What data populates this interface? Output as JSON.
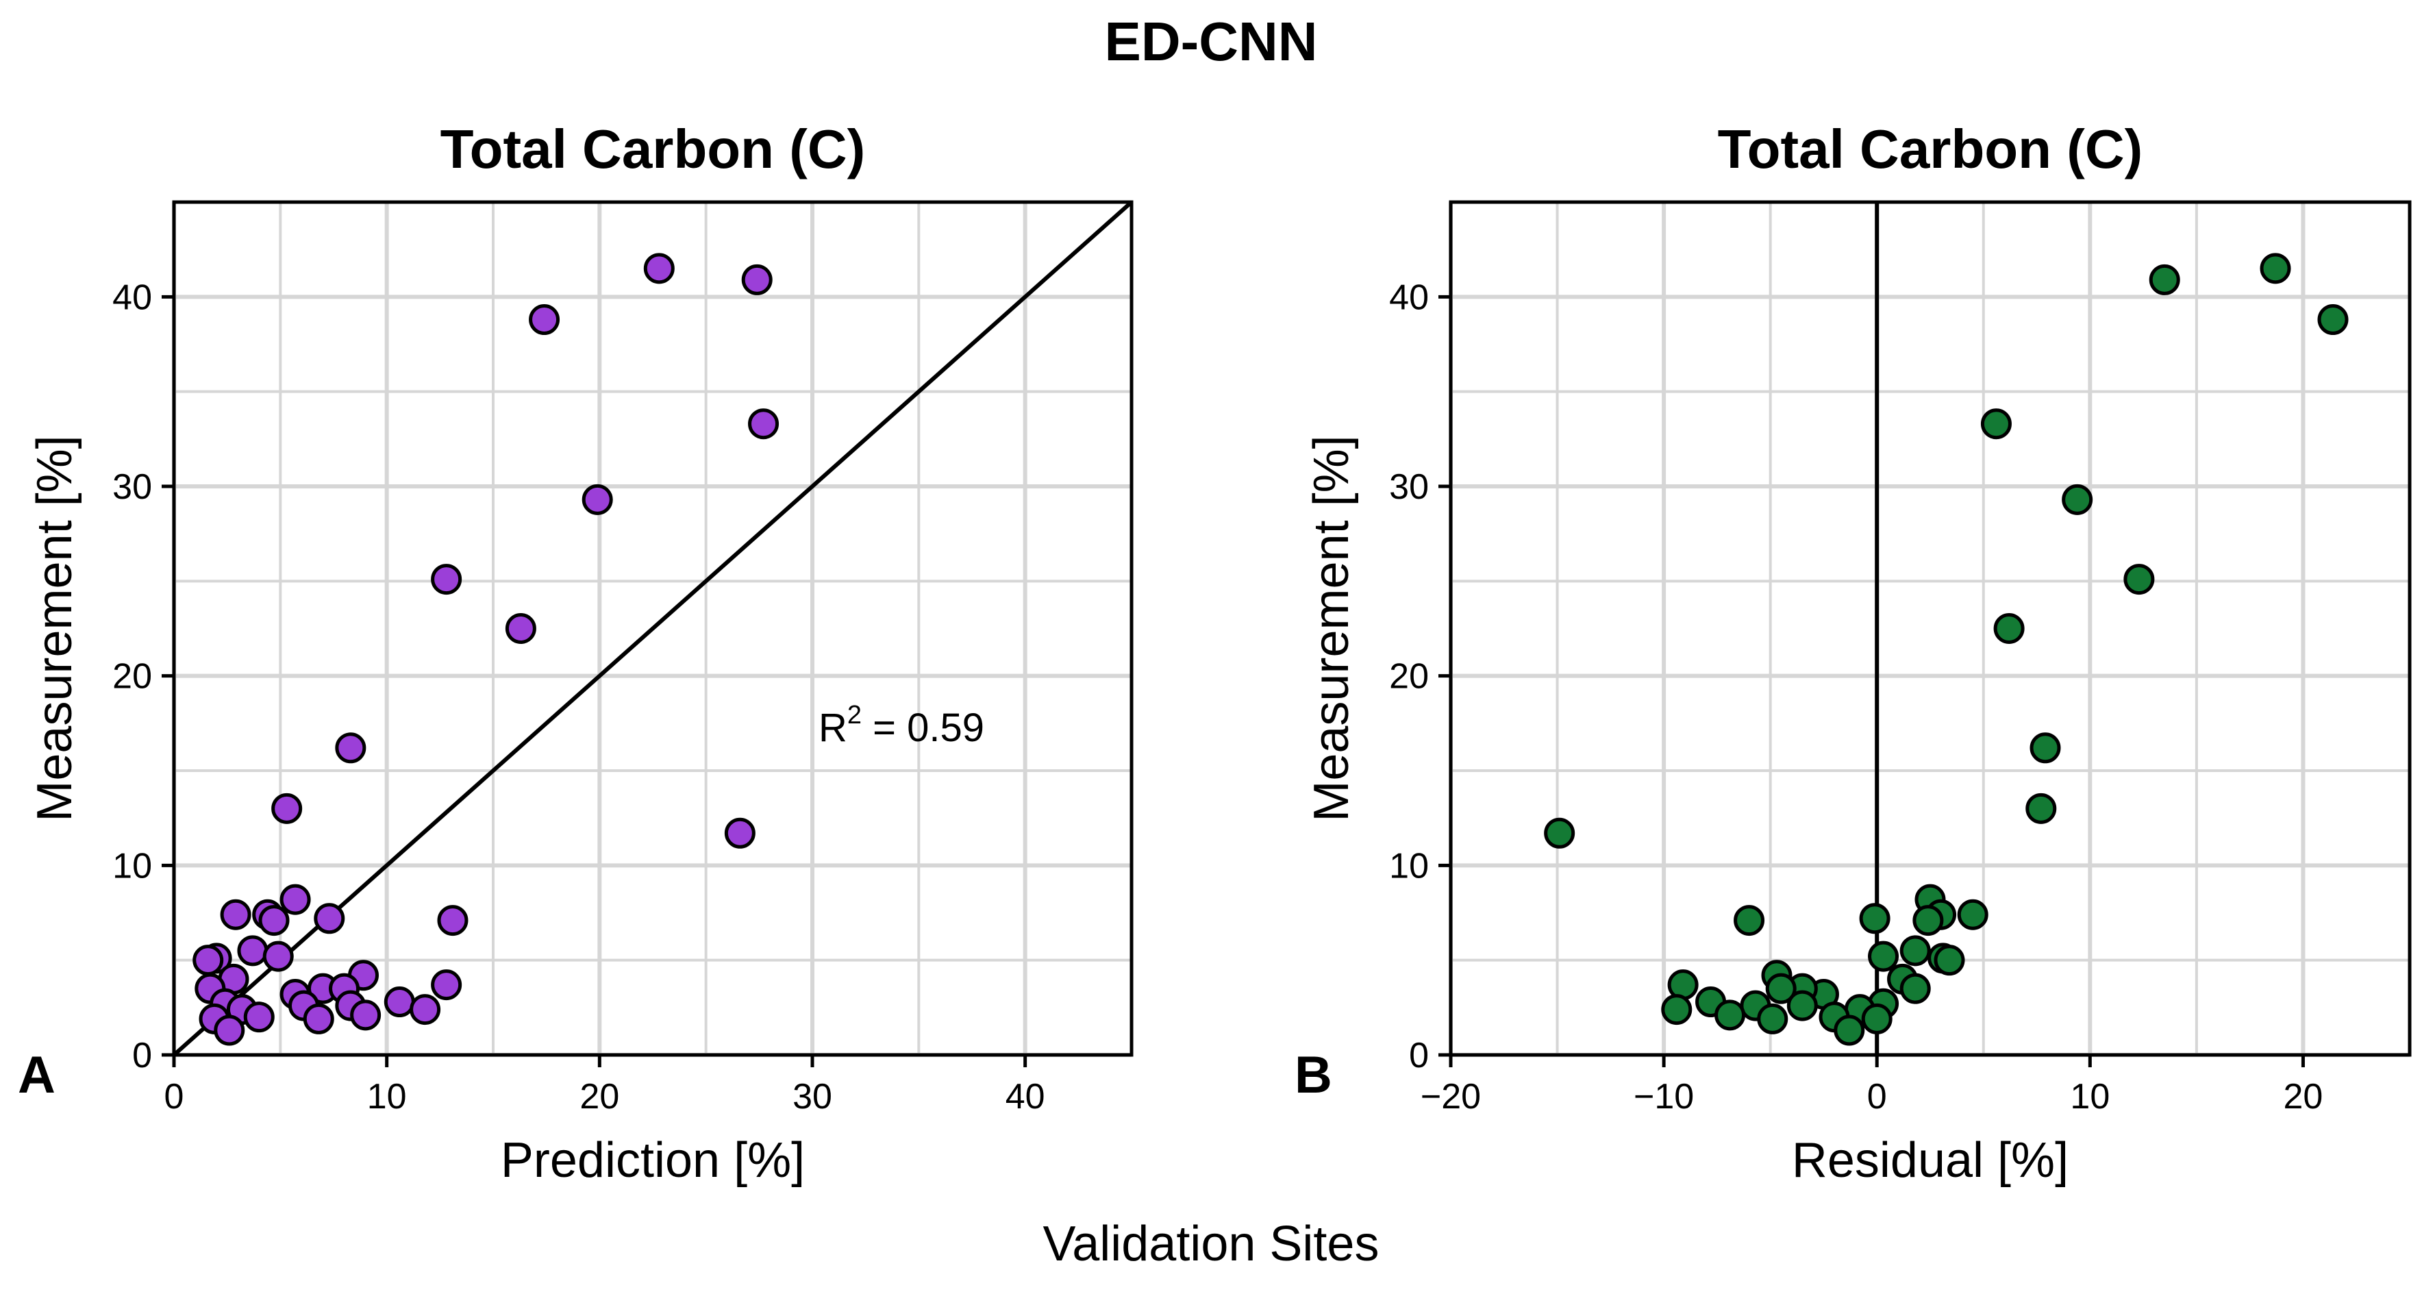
{
  "figure": {
    "title": "ED-CNN",
    "footer_label": "Validation Sites"
  },
  "colors": {
    "panel_a_fill": "#9b3fd8",
    "panel_b_fill": "#137a34",
    "grid": "#d6d6d6",
    "axis": "#000000"
  },
  "chart_data": [
    {
      "type": "scatter",
      "panel_label": "A",
      "title": "Total Carbon (C)",
      "xlabel": "Prediction [%]",
      "ylabel": "Measurement  [%]",
      "xlim": [
        0,
        45
      ],
      "ylim": [
        0,
        45
      ],
      "xticks": [
        0,
        10,
        20,
        30,
        40
      ],
      "yticks": [
        0,
        10,
        20,
        30,
        40
      ],
      "grid": true,
      "reference_line": "diagonal y = x",
      "annotation": {
        "prefix": "R",
        "superscript": "2",
        "suffix": " = 0.59"
      },
      "points": [
        [
          22.8,
          41.5
        ],
        [
          27.4,
          40.9
        ],
        [
          17.4,
          38.8
        ],
        [
          27.7,
          33.3
        ],
        [
          19.9,
          29.3
        ],
        [
          12.8,
          25.1
        ],
        [
          16.3,
          22.5
        ],
        [
          8.3,
          16.2
        ],
        [
          5.3,
          13.0
        ],
        [
          26.6,
          11.7
        ],
        [
          5.7,
          8.2
        ],
        [
          2.9,
          7.4
        ],
        [
          4.4,
          7.4
        ],
        [
          4.7,
          7.1
        ],
        [
          7.3,
          7.2
        ],
        [
          13.1,
          7.1
        ],
        [
          3.7,
          5.5
        ],
        [
          2.0,
          5.1
        ],
        [
          1.6,
          5.0
        ],
        [
          4.9,
          5.2
        ],
        [
          8.9,
          4.2
        ],
        [
          2.8,
          4.0
        ],
        [
          1.7,
          3.5
        ],
        [
          5.7,
          3.2
        ],
        [
          7.0,
          3.5
        ],
        [
          8.0,
          3.5
        ],
        [
          12.8,
          3.7
        ],
        [
          10.6,
          2.8
        ],
        [
          2.4,
          2.7
        ],
        [
          6.1,
          2.6
        ],
        [
          8.3,
          2.6
        ],
        [
          3.2,
          2.4
        ],
        [
          11.8,
          2.4
        ],
        [
          4.0,
          2.0
        ],
        [
          6.8,
          1.9
        ],
        [
          9.0,
          2.1
        ],
        [
          1.9,
          1.9
        ],
        [
          2.6,
          1.3
        ]
      ]
    },
    {
      "type": "scatter",
      "panel_label": "B",
      "title": "Total Carbon (C)",
      "xlabel": "Residual [%]",
      "ylabel": "Measurement  [%]",
      "xlim": [
        -20,
        25
      ],
      "ylim": [
        0,
        45
      ],
      "xticks": [
        -20,
        -10,
        0,
        10,
        20
      ],
      "xtick_labels": [
        "−20",
        "−10",
        "0",
        "10",
        "20"
      ],
      "yticks": [
        0,
        10,
        20,
        30,
        40
      ],
      "grid": true,
      "reference_line": "vertical x = 0",
      "points": [
        [
          18.7,
          41.5
        ],
        [
          13.5,
          40.9
        ],
        [
          21.4,
          38.8
        ],
        [
          5.6,
          33.3
        ],
        [
          9.4,
          29.3
        ],
        [
          12.3,
          25.1
        ],
        [
          6.2,
          22.5
        ],
        [
          7.9,
          16.2
        ],
        [
          7.7,
          13.0
        ],
        [
          -14.9,
          11.7
        ],
        [
          2.5,
          8.2
        ],
        [
          4.5,
          7.4
        ],
        [
          3.0,
          7.4
        ],
        [
          2.4,
          7.1
        ],
        [
          -0.1,
          7.2
        ],
        [
          -6.0,
          7.1
        ],
        [
          1.8,
          5.5
        ],
        [
          3.1,
          5.1
        ],
        [
          3.4,
          5.0
        ],
        [
          0.3,
          5.2
        ],
        [
          -4.7,
          4.2
        ],
        [
          1.2,
          4.0
        ],
        [
          1.8,
          3.5
        ],
        [
          -2.5,
          3.2
        ],
        [
          -3.5,
          3.5
        ],
        [
          -4.5,
          3.5
        ],
        [
          -9.1,
          3.7
        ],
        [
          -7.8,
          2.8
        ],
        [
          0.3,
          2.7
        ],
        [
          -3.5,
          2.6
        ],
        [
          -5.7,
          2.6
        ],
        [
          -0.8,
          2.4
        ],
        [
          -9.4,
          2.4
        ],
        [
          -2.0,
          2.0
        ],
        [
          -4.9,
          1.9
        ],
        [
          -6.9,
          2.1
        ],
        [
          0.0,
          1.9
        ],
        [
          -1.3,
          1.3
        ]
      ]
    }
  ]
}
